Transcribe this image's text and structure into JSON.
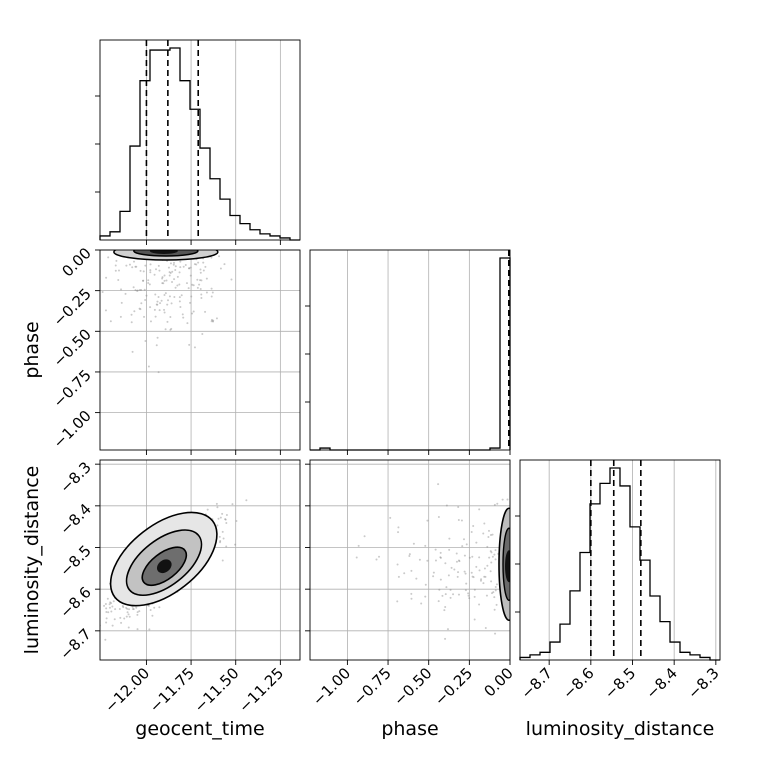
{
  "chart_data": {
    "type": "corner",
    "parameters": [
      {
        "key": "geocent_time",
        "label": "geocent_time",
        "range": [
          -12.26,
          -11.14
        ],
        "ticks": [
          -12.0,
          -11.75,
          -11.5,
          -11.25
        ],
        "tick_labels": [
          "−12.00",
          "−11.75",
          "−11.50",
          "−11.25"
        ],
        "quantiles": [
          -12.0,
          -11.88,
          -11.71
        ]
      },
      {
        "key": "phase",
        "label": "phase",
        "range": [
          -1.23,
          0.0
        ],
        "ticks": [
          -1.0,
          -0.75,
          -0.5,
          -0.25,
          0.0
        ],
        "tick_labels": [
          "−1.00",
          "−0.75",
          "−0.50",
          "−0.25",
          "0.00"
        ],
        "quantiles": [
          -0.004,
          -0.002,
          -0.0005
        ]
      },
      {
        "key": "luminosity_distance",
        "label": "luminosity_distance",
        "range": [
          -8.77,
          -8.29
        ],
        "ticks": [
          -8.7,
          -8.6,
          -8.5,
          -8.4,
          -8.3
        ],
        "tick_labels": [
          "−8.7",
          "−8.6",
          "−8.5",
          "−8.4",
          "−8.3"
        ],
        "quantiles": [
          -8.6,
          -8.545,
          -8.48
        ]
      }
    ],
    "histograms": {
      "geocent_time": {
        "bin_edges_range": [
          -12.26,
          -11.14
        ],
        "counts": [
          2,
          4,
          14,
          46,
          78,
          93,
          93,
          94,
          78,
          64,
          45,
          30,
          20,
          12,
          8,
          5,
          3,
          2,
          1,
          0
        ]
      },
      "phase": {
        "bin_edges_range": [
          -1.23,
          0.0
        ],
        "counts": [
          0,
          1,
          0,
          0,
          0,
          0,
          0,
          0,
          0,
          0,
          0,
          0,
          0,
          0,
          0,
          0,
          0,
          0,
          1,
          98
        ]
      },
      "luminosity_distance": {
        "bin_edges_range": [
          -8.77,
          -8.29
        ],
        "counts": [
          1,
          2,
          3,
          7,
          14,
          27,
          42,
          61,
          69,
          75,
          68,
          52,
          39,
          25,
          15,
          7,
          3,
          2,
          1,
          0
        ]
      }
    },
    "pairs": [
      {
        "x": "geocent_time",
        "y": "phase",
        "kind": "contour-scatter",
        "density_center": [
          -11.88,
          0.0
        ],
        "scatter_extent": {
          "x": [
            -12.15,
            -11.55
          ],
          "y": [
            -1.05,
            0.0
          ]
        }
      },
      {
        "x": "geocent_time",
        "y": "luminosity_distance",
        "kind": "contour-scatter",
        "density_center": [
          -11.9,
          -8.545
        ],
        "correlation": "positive",
        "scatter_extent": {
          "x": [
            -12.24,
            -11.28
          ],
          "y": [
            -8.74,
            -8.36
          ]
        }
      },
      {
        "x": "phase",
        "y": "luminosity_distance",
        "kind": "contour-scatter",
        "density_center": [
          0.0,
          -8.545
        ],
        "scatter_extent": {
          "x": [
            -1.0,
            0.0
          ],
          "y": [
            -8.66,
            -8.43
          ]
        }
      }
    ],
    "grid": true,
    "quantile_line_style": "dashed"
  }
}
